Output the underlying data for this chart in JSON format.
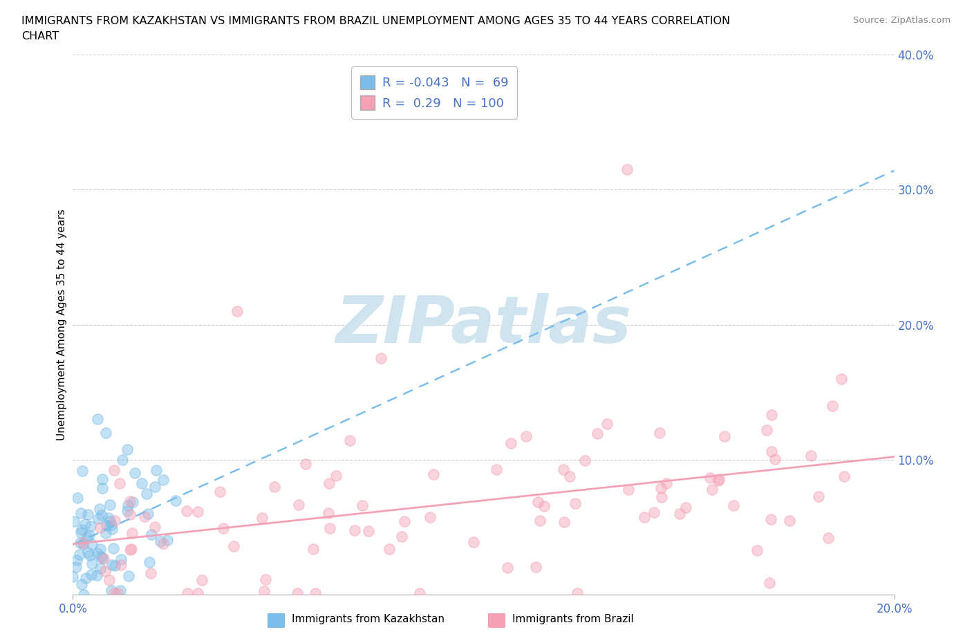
{
  "title_line1": "IMMIGRANTS FROM KAZAKHSTAN VS IMMIGRANTS FROM BRAZIL UNEMPLOYMENT AMONG AGES 35 TO 44 YEARS CORRELATION",
  "title_line2": "CHART",
  "source": "Source: ZipAtlas.com",
  "ylabel": "Unemployment Among Ages 35 to 44 years",
  "xlim": [
    0.0,
    0.2
  ],
  "ylim": [
    0.0,
    0.4
  ],
  "xtick_positions": [
    0.0,
    0.2
  ],
  "xtick_labels": [
    "0.0%",
    "20.0%"
  ],
  "ytick_positions": [
    0.1,
    0.2,
    0.3,
    0.4
  ],
  "ytick_labels": [
    "10.0%",
    "20.0%",
    "30.0%",
    "40.0%"
  ],
  "kazakhstan_color": "#7abde8",
  "brazil_color": "#f4a0b5",
  "kazakhstan_R": -0.043,
  "kazakhstan_N": 69,
  "brazil_R": 0.29,
  "brazil_N": 100,
  "legend_label_kaz": "Immigrants from Kazakhstan",
  "legend_label_bra": "Immigrants from Brazil",
  "watermark": "ZIPatlas",
  "watermark_color": "#d0e4f0",
  "background_color": "#ffffff",
  "grid_color": "#cccccc",
  "axis_color": "#4472c4",
  "title_fontsize": 11.5,
  "tick_fontsize": 12,
  "ylabel_fontsize": 11
}
